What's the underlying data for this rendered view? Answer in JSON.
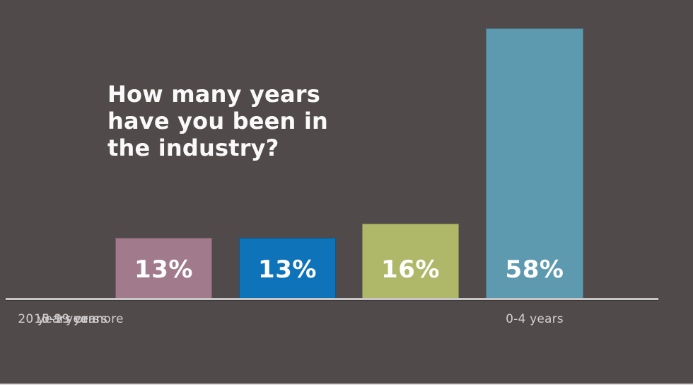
{
  "chart_data": {
    "type": "bar",
    "title": "How many years have you been in the industry?",
    "title_lines": [
      "How many years",
      "have you been in",
      "the industry?"
    ],
    "categories": [
      "0-4 years",
      "5-9 years",
      "10-19 years",
      "20 years or more"
    ],
    "values": [
      13,
      13,
      16,
      58
    ],
    "value_labels": [
      "13%",
      "13%",
      "16%",
      "58%"
    ],
    "colors": [
      "#a17a8c",
      "#0e73b9",
      "#afb768",
      "#5e9aaf"
    ],
    "unit": "%",
    "ylim": [
      0,
      64
    ],
    "grid": false,
    "legend": false,
    "baseline_shown": true
  },
  "theme": {
    "background": "#514a4b",
    "baseline_color": "#c9c6c7",
    "title_color": "#faf9f9",
    "category_label_color": "#d2cecf",
    "value_text_color": "#ffffff",
    "bottom_strip_color": "#dcdada"
  }
}
